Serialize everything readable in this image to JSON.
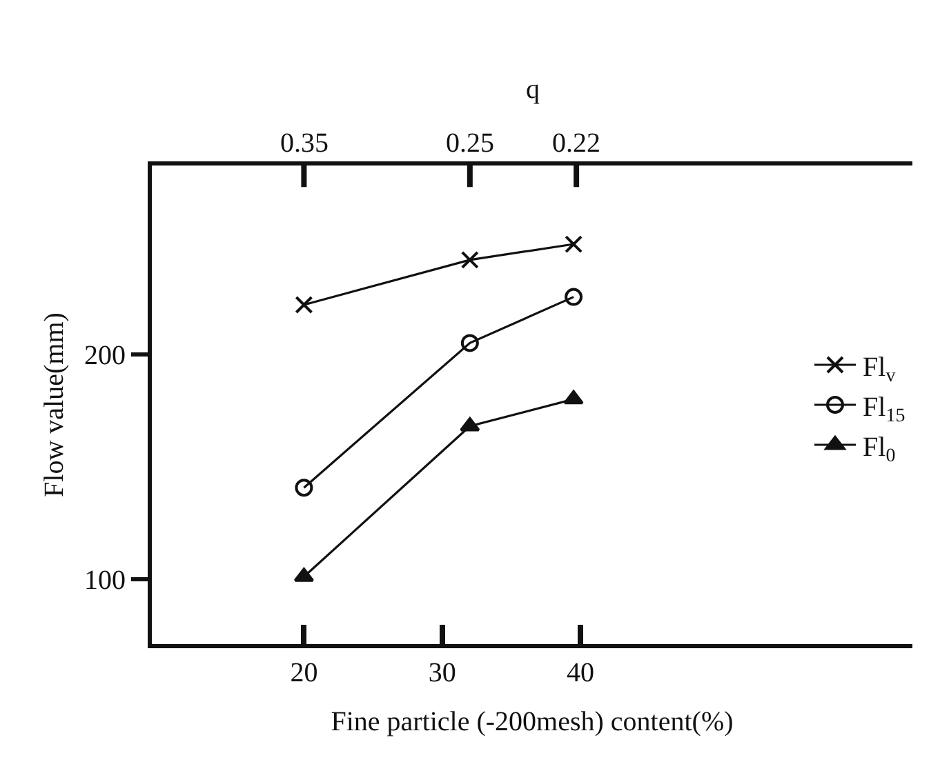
{
  "chart_data": {
    "type": "line",
    "xlabel": "Fine particle (-200mesh) content(%)",
    "ylabel": "Flow value(mm)",
    "x2label": "q",
    "x": [
      20,
      32,
      39.5
    ],
    "series": [
      {
        "name": "Fl$_{v}$",
        "color": "#111111",
        "marker": "cross",
        "values": [
          222,
          242,
          249
        ]
      },
      {
        "name": "Fl$_{15}$",
        "color": "#111111",
        "marker": "circle",
        "values": [
          140.6,
          205,
          225.5
        ]
      },
      {
        "name": "Fl$_{0}$",
        "color": "#111111",
        "marker": "triangle",
        "values": [
          101,
          168,
          180
        ]
      }
    ],
    "xlim": [
      9,
      64
    ],
    "xticks": [
      20,
      30,
      40
    ],
    "annotations": [
      {
        "text": "0.35",
        "x": 20
      },
      {
        "text": "0.25",
        "x": 32
      },
      {
        "text": "0.22",
        "x": 39.7
      }
    ],
    "ylim": [
      71,
      284
    ],
    "yticks": [
      100,
      200
    ],
    "grid": false,
    "legend": "right",
    "line_style": "solid"
  }
}
